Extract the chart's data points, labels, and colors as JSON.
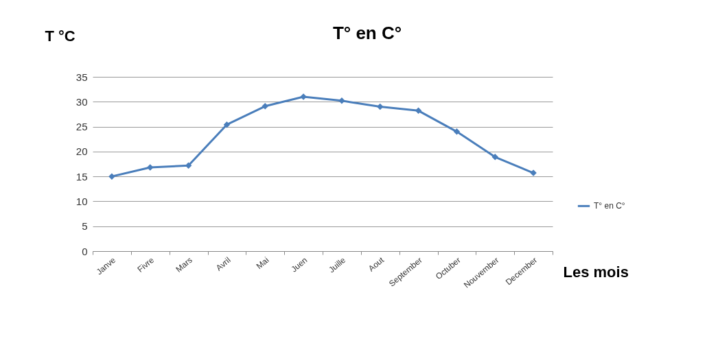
{
  "chart_data": {
    "type": "line",
    "title": "T° en C°",
    "ylabel": "T °C",
    "xlabel": "Les mois",
    "categories": [
      "Janve",
      "Fivre",
      "Mars",
      "Avril",
      "Mai",
      "Juen",
      "Juille",
      "Aout",
      "September",
      "Octuber",
      "Nouvember",
      "December"
    ],
    "series": [
      {
        "name": "T° en C°",
        "color": "#4a7ebb",
        "values": [
          15,
          16.8,
          17.2,
          25.4,
          29.1,
          31,
          30.2,
          29,
          28.2,
          24,
          18.9,
          15.7
        ]
      }
    ],
    "ylim": [
      0,
      35
    ],
    "yticks": [
      0,
      5,
      10,
      15,
      20,
      25,
      30,
      35
    ],
    "grid": "y",
    "legend": "right",
    "marker": "diamond",
    "line_style": "solid"
  }
}
